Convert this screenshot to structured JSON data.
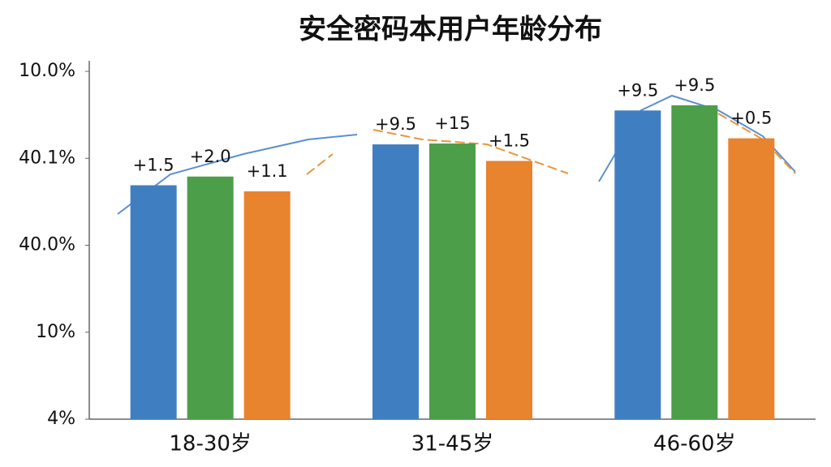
{
  "chart_data": {
    "type": "bar",
    "title": "安全密码本用户年龄分布",
    "categories": [
      "18-30岁",
      "31-45岁",
      "46-60岁"
    ],
    "series": [
      {
        "color": "#3f7fc1",
        "values": [
          2.69,
          3.16,
          3.55
        ],
        "bar_labels": [
          "+1.5",
          "+9.5",
          "+9.5"
        ]
      },
      {
        "color": "#4c9e48",
        "values": [
          2.79,
          3.17,
          3.61
        ],
        "bar_labels": [
          "+2.0",
          "+15",
          "+9.5"
        ]
      },
      {
        "color": "#e8832e",
        "values": [
          2.62,
          2.97,
          3.23
        ],
        "bar_labels": [
          "+1.1",
          "+1.5",
          "+0.5"
        ]
      }
    ],
    "ylim": [
      0,
      4
    ],
    "yticks": [
      {
        "value": 0,
        "label": "4%"
      },
      {
        "value": 1,
        "label": "10%"
      },
      {
        "value": 2,
        "label": "40.0%"
      },
      {
        "value": 3,
        "label": "40.1%"
      },
      {
        "value": 4,
        "label": "10.0%"
      }
    ]
  }
}
